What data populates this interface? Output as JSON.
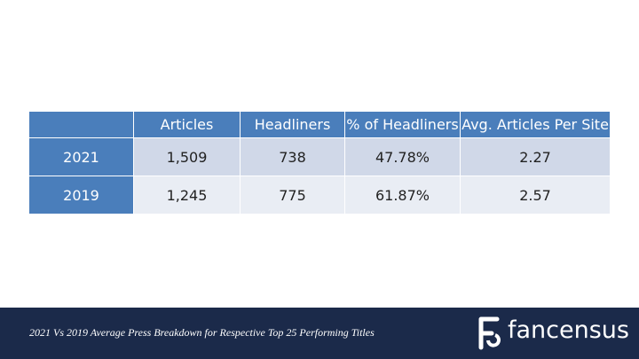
{
  "table": {
    "header": [
      "Articles",
      "Headliners",
      "% of Headliners",
      "Avg. Articles Per Site"
    ],
    "rows": [
      [
        "2021",
        "1,509",
        "738",
        "47.78%",
        "2.27"
      ],
      [
        "2019",
        "1,245",
        "775",
        "61.87%",
        "2.57"
      ]
    ]
  },
  "footer": {
    "caption": "2021 Vs 2019 Average Press Breakdown for Respective Top 25 Performing Titles",
    "logo": "fancensus"
  }
}
